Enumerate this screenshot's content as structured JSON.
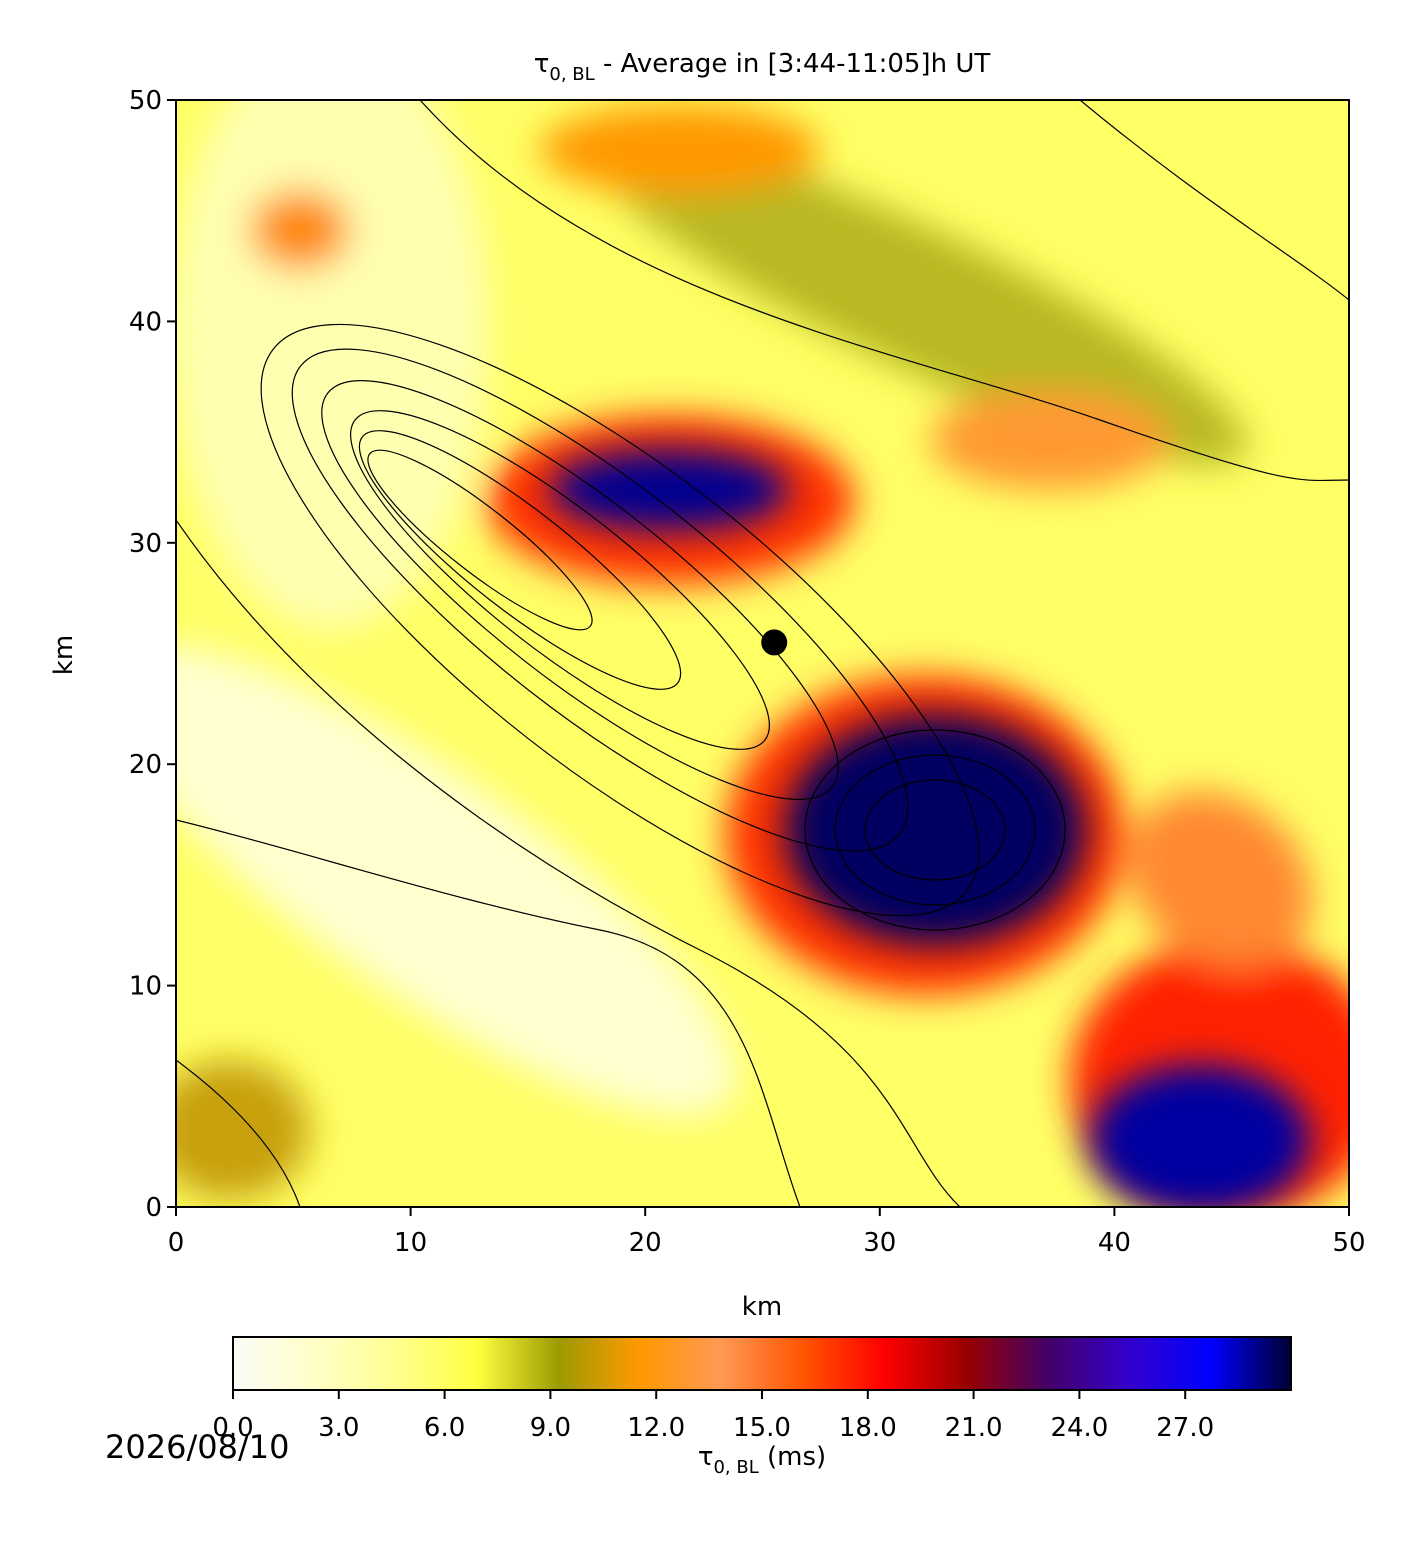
{
  "chart_data": {
    "type": "heatmap",
    "title_symbol": "τ",
    "title_subscript": "0, BL",
    "title_rest": " - Average in [3:44-11:05]h UT",
    "x_label": "km",
    "y_label": "km",
    "xlim": [
      0,
      50
    ],
    "ylim": [
      0,
      50
    ],
    "xticks": [
      0,
      10,
      20,
      30,
      40,
      50
    ],
    "yticks": [
      0,
      10,
      20,
      30,
      40,
      50
    ],
    "marker": {
      "x": 25.5,
      "y": 25.5,
      "color": "#000000"
    },
    "colorbar": {
      "clim": [
        0,
        30
      ],
      "ticks": [
        {
          "value": 0,
          "label": "0.0"
        },
        {
          "value": 3,
          "label": "3.0"
        },
        {
          "value": 6,
          "label": "6.0"
        },
        {
          "value": 9,
          "label": "9.0"
        },
        {
          "value": 12,
          "label": "12.0"
        },
        {
          "value": 15,
          "label": "15.0"
        },
        {
          "value": 18,
          "label": "18.0"
        },
        {
          "value": 21,
          "label": "21.0"
        },
        {
          "value": 24,
          "label": "24.0"
        },
        {
          "value": 27,
          "label": "27.0"
        }
      ],
      "colors": [
        "#fbfbf7",
        "#ffffc8",
        "#ffff90",
        "#ffff40",
        "#9b9b00",
        "#ff9900",
        "#ff9955",
        "#ff5500",
        "#ff0000",
        "#990000",
        "#440066",
        "#3300cc",
        "#0000ff",
        "#000033"
      ],
      "label_symbol": "τ",
      "label_subscript": "0, BL",
      "label_rest": " (ms)"
    },
    "date": "2026/08/10"
  }
}
